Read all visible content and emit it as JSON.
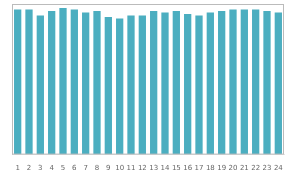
{
  "chart_data": {
    "type": "bar",
    "categories": [
      1,
      2,
      3,
      4,
      5,
      6,
      7,
      8,
      9,
      10,
      11,
      12,
      13,
      14,
      15,
      16,
      17,
      18,
      19,
      20,
      21,
      22,
      23,
      24
    ],
    "values": [
      97,
      97,
      93,
      96,
      98,
      97,
      95,
      96,
      92,
      91,
      93,
      93,
      96,
      95,
      96,
      94,
      93,
      95,
      96,
      97,
      97,
      97,
      96,
      95
    ],
    "color": "#4BAEC0",
    "ylim": [
      0,
      100
    ],
    "yticks": [],
    "grid": false,
    "tick_labels": "x"
  }
}
